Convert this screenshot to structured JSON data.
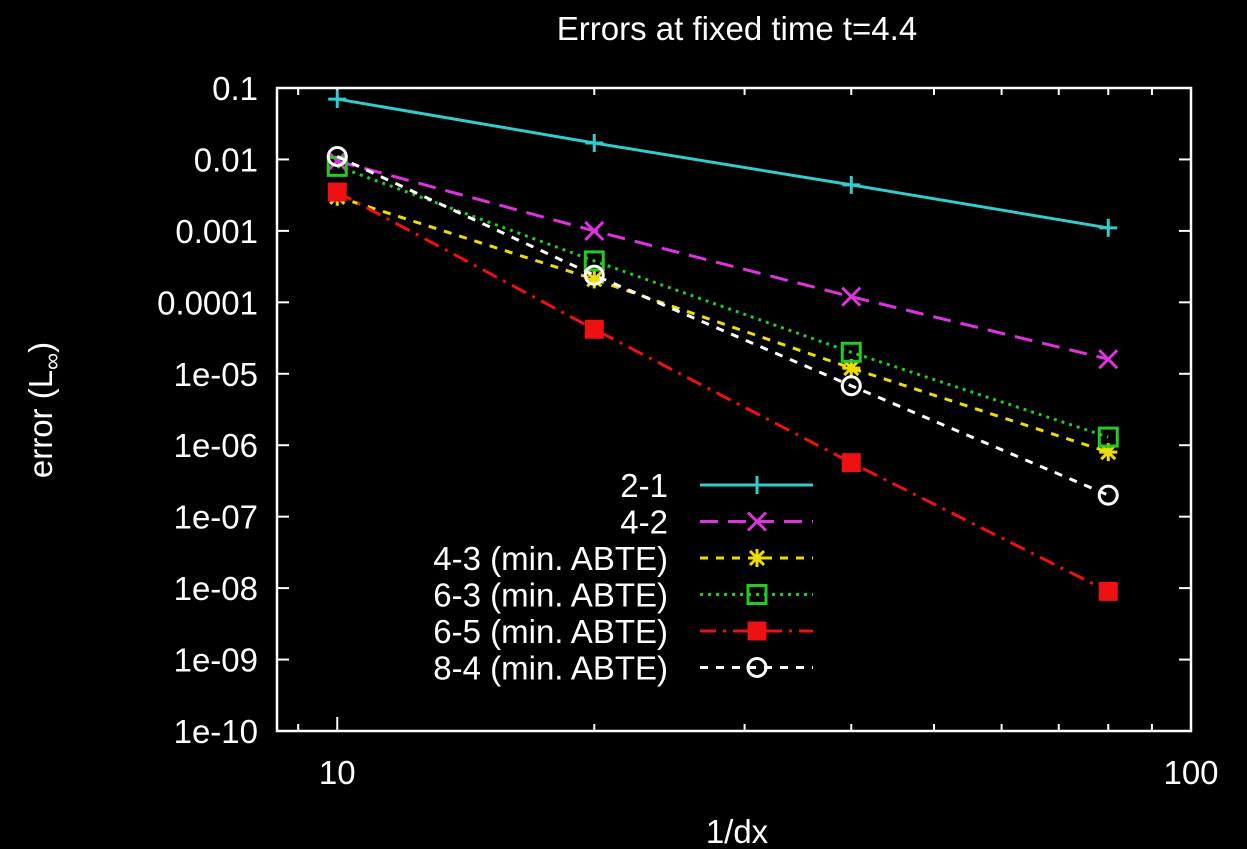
{
  "chart_data": {
    "type": "line",
    "title": "Errors at fixed time t=4.4",
    "xlabel": "1/dx",
    "ylabel_main": "error (L",
    "ylabel_sub": "∞",
    "ylabel_tail": ")",
    "x_scale": "log",
    "y_scale": "log",
    "xlim": [
      8.5,
      100
    ],
    "ylim": [
      1e-10,
      0.1
    ],
    "x_ticks": [
      {
        "value": 10,
        "label": "10"
      },
      {
        "value": 100,
        "label": "100"
      }
    ],
    "y_ticks": [
      {
        "value": 0.1,
        "label": "0.1"
      },
      {
        "value": 0.01,
        "label": "0.01"
      },
      {
        "value": 0.001,
        "label": "0.001"
      },
      {
        "value": 0.0001,
        "label": "0.0001"
      },
      {
        "value": 1e-05,
        "label": "1e-05"
      },
      {
        "value": 1e-06,
        "label": "1e-06"
      },
      {
        "value": 1e-07,
        "label": "1e-07"
      },
      {
        "value": 1e-08,
        "label": "1e-08"
      },
      {
        "value": 1e-09,
        "label": "1e-09"
      },
      {
        "value": 1e-10,
        "label": "1e-10"
      }
    ],
    "legend_position": "bottom-center",
    "x": [
      10,
      20,
      40,
      80
    ],
    "series": [
      {
        "name": "2-1",
        "color": "#33cccc",
        "dash": "solid",
        "marker": "plus",
        "values": [
          0.07,
          0.017,
          0.0044,
          0.0011
        ]
      },
      {
        "name": "4-2",
        "color": "#dd33dd",
        "dash": "dashed",
        "marker": "cross",
        "values": [
          0.0095,
          0.001,
          0.00012,
          1.6e-05
        ]
      },
      {
        "name": "4-3 (min. ABTE)",
        "color": "#eedd00",
        "dash": "dashed-short",
        "marker": "star",
        "values": [
          0.003,
          0.00021,
          1.2e-05,
          8e-07
        ]
      },
      {
        "name": "6-3 (min. ABTE)",
        "color": "#22cc22",
        "dash": "dotted",
        "marker": "open-square",
        "values": [
          0.008,
          0.00038,
          2e-05,
          1.3e-06
        ]
      },
      {
        "name": "6-5 (min. ABTE)",
        "color": "#ee1111",
        "dash": "dash-dot",
        "marker": "filled-square",
        "values": [
          0.0035,
          4.2e-05,
          5.7e-07,
          9e-09
        ]
      },
      {
        "name": "8-4 (min. ABTE)",
        "color": "#ffffff",
        "dash": "dashed-short",
        "marker": "open-circle",
        "values": [
          0.011,
          0.00024,
          6.8e-06,
          2e-07
        ]
      }
    ]
  }
}
